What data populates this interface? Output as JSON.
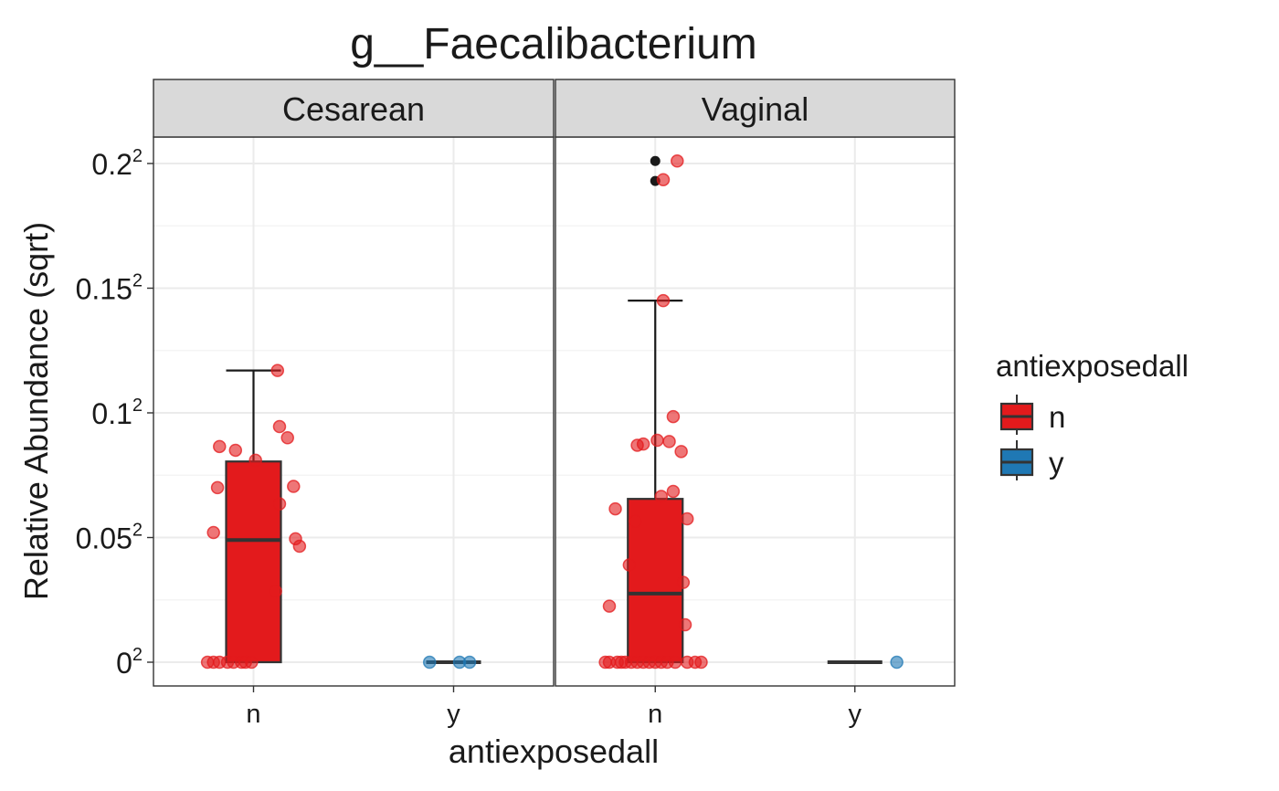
{
  "chart_data": {
    "type": "boxplot",
    "title": "g__Faecalibacterium",
    "xlabel": "antiexposedall",
    "ylabel": "Relative Abundance (sqrt)",
    "y_scale": "sqrt",
    "ylim": [
      0,
      0.21
    ],
    "y_ticks": [
      {
        "value": 0,
        "base": "0",
        "exp": "2"
      },
      {
        "value": 0.05,
        "base": "0.05",
        "exp": "2"
      },
      {
        "value": 0.1,
        "base": "0.1",
        "exp": "2"
      },
      {
        "value": 0.15,
        "base": "0.15",
        "exp": "2"
      },
      {
        "value": 0.2,
        "base": "0.2",
        "exp": "2"
      }
    ],
    "categories": [
      "n",
      "y"
    ],
    "legend": {
      "title": "antiexposedall",
      "position": "right",
      "items": [
        {
          "label": "n",
          "color": "#e31a1c"
        },
        {
          "label": "y",
          "color": "#1f78b4"
        }
      ]
    },
    "colors": {
      "n": "#e31a1c",
      "y": "#1f78b4",
      "outlier": "#1a1a1a",
      "box_line": "#333333"
    },
    "facets": [
      {
        "label": "Cesarean",
        "groups": [
          {
            "category": "n",
            "box": {
              "q1": 0,
              "median": 0.049,
              "q3": 0.0805,
              "whisker_low": 0,
              "whisker_high": 0.117
            },
            "outliers": [],
            "points": [
              {
                "j": -0.23,
                "y": 0
              },
              {
                "j": -0.2,
                "y": 0
              },
              {
                "j": -0.17,
                "y": 0
              },
              {
                "j": -0.13,
                "y": 0
              },
              {
                "j": -0.1,
                "y": 0
              },
              {
                "j": -0.06,
                "y": 0
              },
              {
                "j": -0.04,
                "y": 0
              },
              {
                "j": -0.01,
                "y": 0
              },
              {
                "j": -0.17,
                "y": 0.0865
              },
              {
                "j": -0.09,
                "y": 0.085
              },
              {
                "j": -0.18,
                "y": 0.07
              },
              {
                "j": -0.2,
                "y": 0.052
              },
              {
                "j": 0.01,
                "y": 0.081
              },
              {
                "j": 0.12,
                "y": 0.117
              },
              {
                "j": 0.13,
                "y": 0.0945
              },
              {
                "j": 0.17,
                "y": 0.09
              },
              {
                "j": 0.2,
                "y": 0.0705
              },
              {
                "j": 0.13,
                "y": 0.0635
              },
              {
                "j": 0.21,
                "y": 0.0495
              },
              {
                "j": 0.23,
                "y": 0.0465
              },
              {
                "j": 0.11,
                "y": 0.0285
              }
            ]
          },
          {
            "category": "y",
            "box": {
              "q1": 0,
              "median": 0,
              "q3": 0,
              "whisker_low": 0,
              "whisker_high": 0
            },
            "outliers": [],
            "points": [
              {
                "j": -0.12,
                "y": 0
              },
              {
                "j": 0.03,
                "y": 0
              },
              {
                "j": 0.08,
                "y": 0
              }
            ]
          }
        ]
      },
      {
        "label": "Vaginal",
        "groups": [
          {
            "category": "n",
            "box": {
              "q1": 0,
              "median": 0.0275,
              "q3": 0.0655,
              "whisker_low": 0,
              "whisker_high": 0.145
            },
            "outliers": [
              0.201,
              0.193
            ],
            "points": [
              {
                "j": -0.25,
                "y": 0
              },
              {
                "j": -0.23,
                "y": 0
              },
              {
                "j": -0.19,
                "y": 0
              },
              {
                "j": -0.17,
                "y": 0
              },
              {
                "j": -0.15,
                "y": 0
              },
              {
                "j": -0.12,
                "y": 0
              },
              {
                "j": -0.09,
                "y": 0
              },
              {
                "j": -0.06,
                "y": 0
              },
              {
                "j": -0.03,
                "y": 0
              },
              {
                "j": 0.0,
                "y": 0
              },
              {
                "j": 0.03,
                "y": 0
              },
              {
                "j": 0.06,
                "y": 0
              },
              {
                "j": 0.1,
                "y": 0
              },
              {
                "j": 0.16,
                "y": 0
              },
              {
                "j": 0.2,
                "y": 0
              },
              {
                "j": 0.23,
                "y": 0
              },
              {
                "j": 0.11,
                "y": 0.201
              },
              {
                "j": 0.04,
                "y": 0.1935
              },
              {
                "j": 0.04,
                "y": 0.145
              },
              {
                "j": -0.06,
                "y": 0.0875
              },
              {
                "j": -0.09,
                "y": 0.087
              },
              {
                "j": 0.01,
                "y": 0.089
              },
              {
                "j": 0.09,
                "y": 0.0985
              },
              {
                "j": 0.07,
                "y": 0.0885
              },
              {
                "j": 0.13,
                "y": 0.0845
              },
              {
                "j": 0.09,
                "y": 0.0685
              },
              {
                "j": 0.03,
                "y": 0.0665
              },
              {
                "j": -0.2,
                "y": 0.0615
              },
              {
                "j": -0.1,
                "y": 0.0565
              },
              {
                "j": 0.16,
                "y": 0.0575
              },
              {
                "j": -0.13,
                "y": 0.039
              },
              {
                "j": 0.14,
                "y": 0.032
              },
              {
                "j": -0.23,
                "y": 0.0225
              },
              {
                "j": 0.15,
                "y": 0.015
              }
            ]
          },
          {
            "category": "y",
            "box": {
              "q1": 0,
              "median": 0,
              "q3": 0,
              "whisker_low": 0,
              "whisker_high": 0
            },
            "outliers": [],
            "points": [
              {
                "j": 0.21,
                "y": 0
              }
            ]
          }
        ]
      }
    ]
  }
}
